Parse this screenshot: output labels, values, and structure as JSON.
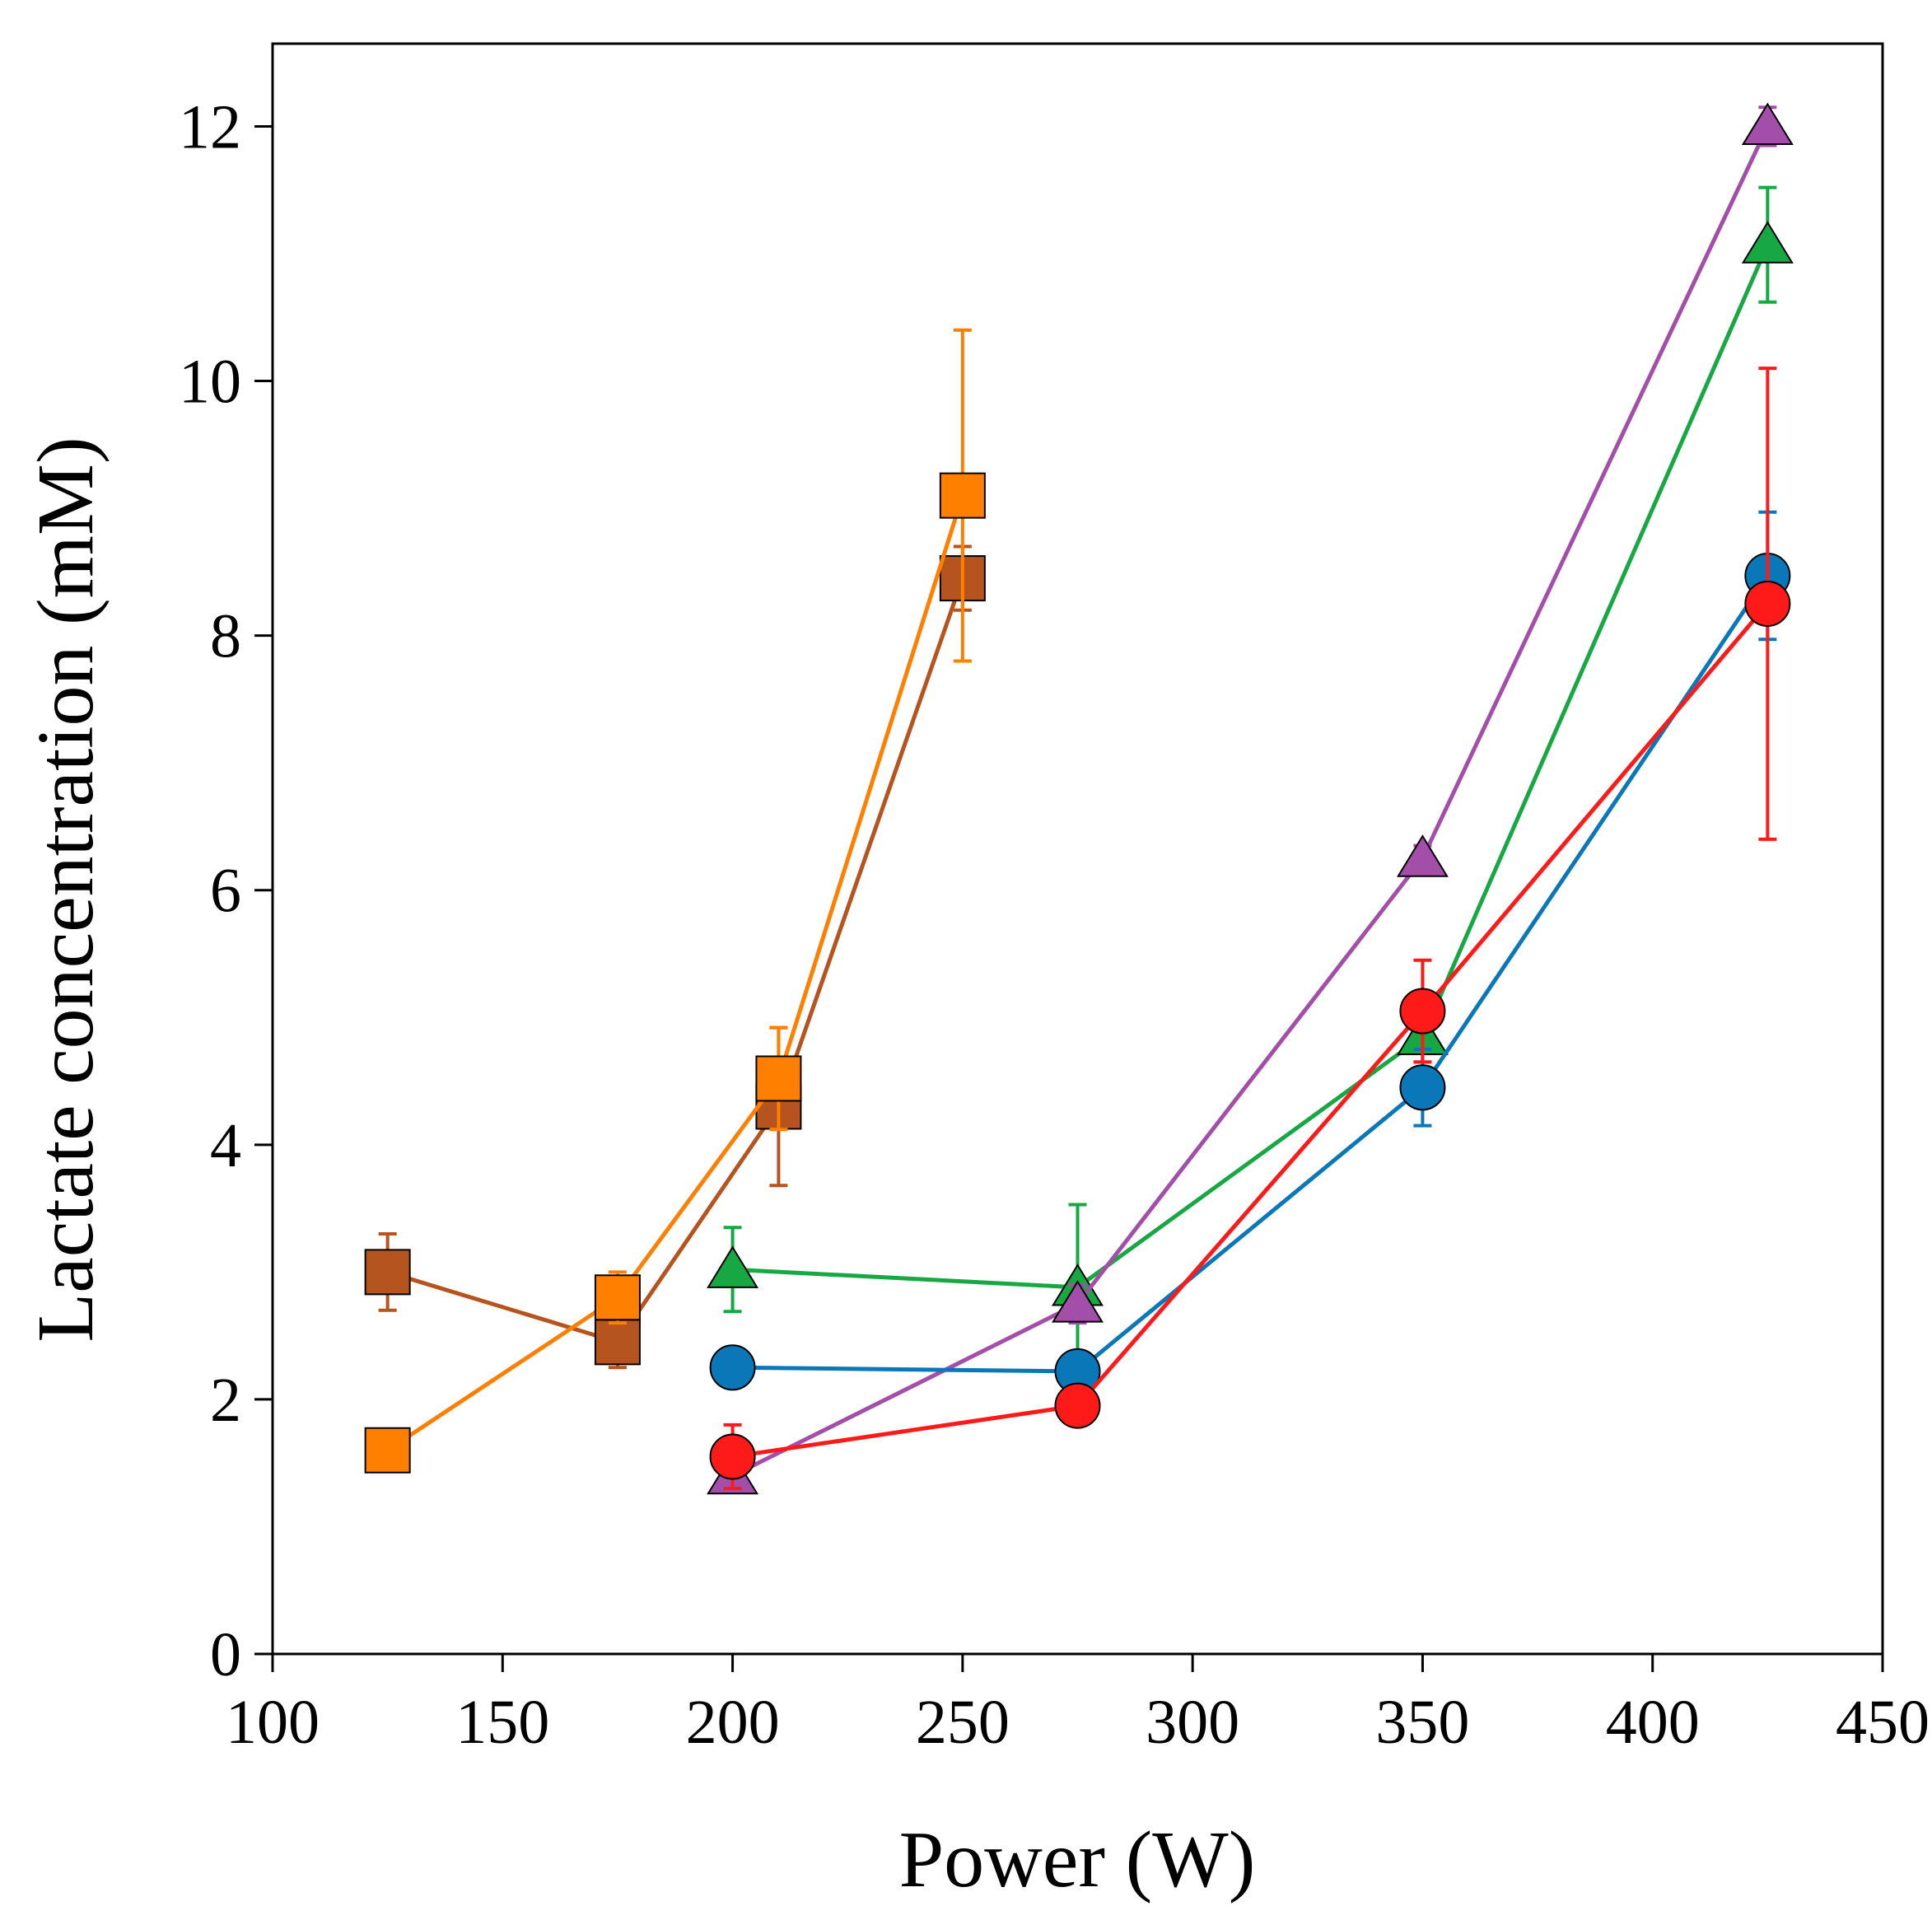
{
  "chart_data": {
    "type": "line",
    "title": "",
    "xlabel": "Power (W)",
    "ylabel": "Lactate concentration (mM)",
    "xlim": [
      100,
      450
    ],
    "ylim": [
      0,
      12.65
    ],
    "xticks": [
      "100",
      "150",
      "200",
      "250",
      "300",
      "350",
      "400",
      "450"
    ],
    "yticks": [
      "0",
      "2",
      "4",
      "6",
      "8",
      "10",
      "12"
    ],
    "grid": false,
    "legend": "none",
    "series": [
      {
        "name": "brown-squares",
        "color": "#b5541f",
        "marker": "square",
        "x": [
          125,
          175,
          210,
          250
        ],
        "y": [
          3.0,
          2.45,
          4.3,
          8.45
        ],
        "err": [
          0.3,
          0.2,
          0.62,
          0.25
        ]
      },
      {
        "name": "orange-squares",
        "color": "#ff8000",
        "marker": "square",
        "x": [
          125,
          175,
          210,
          250
        ],
        "y": [
          1.6,
          2.8,
          4.52,
          9.1
        ],
        "err": [
          0,
          0.2,
          0.4,
          1.3
        ]
      },
      {
        "name": "green-triangles",
        "color": "#17a844",
        "marker": "triangle",
        "x": [
          200,
          275,
          350,
          425
        ],
        "y": [
          3.02,
          2.88,
          4.85,
          11.07
        ],
        "err": [
          0.33,
          0.65,
          0.2,
          0.45
        ]
      },
      {
        "name": "purple-triangles",
        "color": "#a34ea8",
        "marker": "triangle",
        "x": [
          200,
          275,
          350,
          425
        ],
        "y": [
          1.4,
          2.75,
          6.25,
          12.0
        ],
        "err": [
          0.1,
          0.15,
          0.1,
          0.15
        ]
      },
      {
        "name": "blue-circles",
        "color": "#0a78b8",
        "marker": "circle",
        "x": [
          200,
          275,
          350,
          425
        ],
        "y": [
          2.25,
          2.22,
          4.45,
          8.47
        ],
        "err": [
          0,
          0.05,
          0.3,
          0.5
        ]
      },
      {
        "name": "red-circles",
        "color": "#ff1a1a",
        "marker": "circle",
        "x": [
          200,
          275,
          350,
          425
        ],
        "y": [
          1.55,
          1.95,
          5.05,
          8.25
        ],
        "err": [
          0.25,
          0.05,
          0.4,
          1.85
        ]
      }
    ]
  }
}
